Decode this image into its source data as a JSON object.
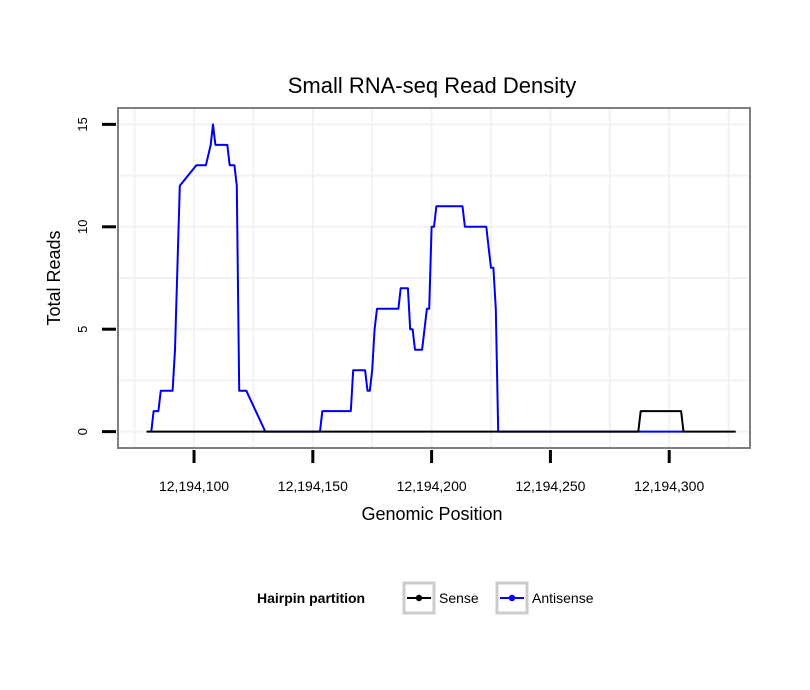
{
  "chart_data": {
    "type": "line",
    "title": "Small RNA-seq Read Density",
    "xlabel": "Genomic Position",
    "ylabel": "Total Reads",
    "xlim": [
      12194068,
      12194334
    ],
    "ylim": [
      -0.8,
      15.8
    ],
    "xticks": [
      12194100,
      12194150,
      12194200,
      12194250,
      12194300
    ],
    "xtick_labels": [
      "12,194,100",
      "12,194,150",
      "12,194,200",
      "12,194,250",
      "12,194,300"
    ],
    "yticks": [
      0,
      5,
      10,
      15
    ],
    "ytick_labels": [
      "0",
      "5",
      "10",
      "15"
    ],
    "grid": true,
    "legend": {
      "title": "Hairpin partition",
      "position": "bottom"
    },
    "series": [
      {
        "name": "Sense",
        "color": "#000000",
        "x": [
          12194080,
          12194287,
          12194288,
          12194305,
          12194306,
          12194328
        ],
        "y": [
          0,
          0,
          1,
          1,
          0,
          0
        ]
      },
      {
        "name": "Antisense",
        "color": "#0000ee",
        "x": [
          12194082,
          12194083,
          12194085,
          12194086,
          12194091,
          12194092,
          12194093,
          12194094,
          12194101,
          12194102,
          12194103,
          12194105,
          12194107,
          12194108,
          12194109,
          12194110,
          12194111,
          12194112,
          12194113,
          12194114,
          12194115,
          12194116,
          12194117,
          12194118,
          12194119,
          12194120,
          12194121,
          12194122,
          12194130,
          12194131,
          12194132,
          12194153,
          12194154,
          12194155,
          12194166,
          12194167,
          12194172,
          12194173,
          12194174,
          12194175,
          12194176,
          12194177,
          12194186,
          12194187,
          12194190,
          12194191,
          12194192,
          12194193,
          12194196,
          12194197,
          12194198,
          12194199,
          12194200,
          12194201,
          12194202,
          12194203,
          12194213,
          12194214,
          12194223,
          12194224,
          12194225,
          12194226,
          12194227,
          12194228,
          12194229,
          12194306
        ],
        "y": [
          0,
          1,
          1,
          2,
          2,
          4,
          8,
          12,
          13,
          13,
          13,
          13,
          14,
          15,
          14,
          14,
          14,
          14,
          14,
          14,
          13,
          13,
          13,
          12,
          2,
          2,
          2,
          2,
          0,
          0,
          0,
          0,
          1,
          1,
          1,
          3,
          3,
          2,
          2,
          3,
          5,
          6,
          6,
          7,
          7,
          5,
          5,
          4,
          4,
          5,
          6,
          6,
          10,
          10,
          11,
          11,
          11,
          10,
          10,
          9,
          8,
          8,
          6,
          0,
          0,
          0
        ]
      }
    ]
  }
}
